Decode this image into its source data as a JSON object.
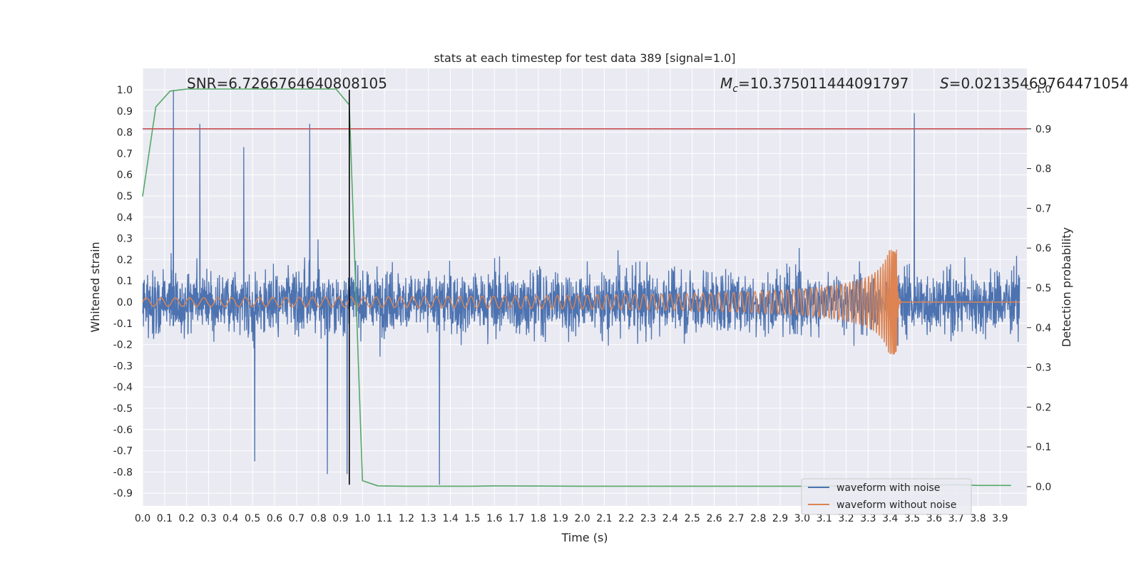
{
  "chart_data": {
    "type": "line",
    "title": "stats at each timestep for test data 389 [signal=1.0]",
    "xlabel": "Time (s)",
    "ylabel": "Whitened strain",
    "ylabel_right": "Detection probability",
    "xlim": [
      0.0,
      4.0
    ],
    "ylim": [
      -0.95,
      1.1
    ],
    "ylim_right": [
      -0.05,
      1.0
    ],
    "x_ticks": [
      "0.0",
      "0.1",
      "0.2",
      "0.3",
      "0.4",
      "0.5",
      "0.6",
      "0.7",
      "0.8",
      "0.9",
      "1.0",
      "1.1",
      "1.2",
      "1.3",
      "1.4",
      "1.5",
      "1.6",
      "1.7",
      "1.8",
      "1.9",
      "2.0",
      "2.1",
      "2.2",
      "2.3",
      "2.4",
      "2.5",
      "2.6",
      "2.7",
      "2.8",
      "2.9",
      "3.0",
      "3.1",
      "3.2",
      "3.3",
      "3.4",
      "3.5",
      "3.6",
      "3.7",
      "3.8",
      "3.9"
    ],
    "y_ticks": [
      "-0.9",
      "-0.8",
      "-0.7",
      "-0.6",
      "-0.5",
      "-0.4",
      "-0.3",
      "-0.2",
      "-0.1",
      "0.0",
      "0.1",
      "0.2",
      "0.3",
      "0.4",
      "0.5",
      "0.6",
      "0.7",
      "0.8",
      "0.9",
      "1.0"
    ],
    "y_ticks_right": [
      "0.0",
      "0.1",
      "0.2",
      "0.3",
      "0.4",
      "0.5",
      "0.6",
      "0.7",
      "0.8",
      "0.9",
      "1.0"
    ],
    "grid": true,
    "legend_position": "lower-right",
    "annotations": {
      "snr": "SNR=6.7266764640808105",
      "mc_symbol": "M",
      "mc_sub": "c",
      "mc_value": "=10.375011444091797",
      "s_symbol": "S",
      "s_value": "=0.02135469764471054"
    },
    "series": [
      {
        "name": "waveform with noise",
        "color": "#4c72b0",
        "note": "dense noisy strain spanning approx -0.75 to 0.55 with spikes",
        "spikes": [
          {
            "x": 0.14,
            "y": 1.0
          },
          {
            "x": 0.26,
            "y": 0.84
          },
          {
            "x": 0.46,
            "y": 0.73
          },
          {
            "x": 0.76,
            "y": 0.84
          },
          {
            "x": 3.51,
            "y": 0.89
          },
          {
            "x": 1.35,
            "y": -0.86
          },
          {
            "x": 0.51,
            "y": -0.75
          },
          {
            "x": 0.84,
            "y": -0.81
          },
          {
            "x": 0.93,
            "y": -0.81
          }
        ]
      },
      {
        "name": "waveform without noise",
        "color": "#dd8452",
        "note": "chirp signal, merger at about 3.43 s",
        "merger_time": 3.43,
        "peak_amplitude": 0.25
      },
      {
        "name": "",
        "axis": "right",
        "color": "#55a868",
        "x": [
          0.0,
          0.06,
          0.125,
          0.2,
          0.3,
          0.5,
          0.88,
          0.94,
          1.0,
          1.07,
          1.2,
          1.5,
          1.6,
          2.0,
          3.0,
          3.5,
          3.7,
          3.8,
          3.95
        ],
        "y": [
          0.73,
          0.955,
          0.995,
          1.0,
          1.0,
          1.0,
          1.0,
          0.96,
          0.015,
          0.002,
          0.001,
          0.001,
          0.002,
          0.001,
          0.001,
          0.002,
          0.005,
          0.003,
          0.003
        ]
      }
    ],
    "reference_lines": [
      {
        "orientation": "horizontal",
        "axis": "right",
        "y": 0.9,
        "color": "#c44e52"
      },
      {
        "orientation": "vertical",
        "x": 0.94,
        "y_range": [
          -0.86,
          1.0
        ],
        "color": "#000000"
      }
    ],
    "colors": {
      "plot_bg": "#eaeaf2",
      "grid": "#ffffff",
      "noise": "#4c72b0",
      "clean": "#dd8452",
      "prob": "#55a868",
      "threshold": "#c44e52"
    }
  }
}
